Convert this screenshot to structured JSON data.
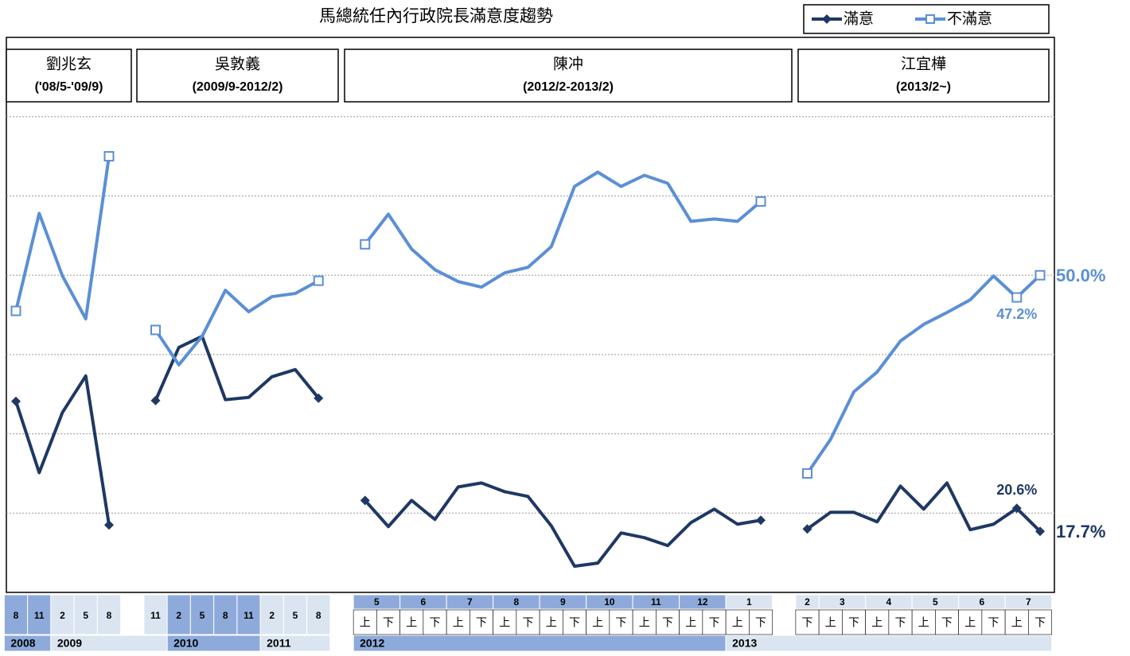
{
  "chart_data": {
    "type": "line",
    "title": "馬總統任內行政院長滿意度趨勢",
    "periods": [
      {
        "name": "劉兆玄",
        "term": "('08/5-'09/9)"
      },
      {
        "name": "吳敦義",
        "term": "(2009/9-2012/2)"
      },
      {
        "name": "陳冲",
        "term": "(2012/2-2013/2)"
      },
      {
        "name": "江宜樺",
        "term": "(2013/2~)"
      }
    ],
    "categories": [
      "8",
      "11",
      "2",
      "5",
      "8",
      null,
      "11",
      "2",
      "5",
      "8",
      "11",
      "2",
      "5",
      "8",
      null,
      "上",
      "下",
      "上",
      "下",
      "上",
      "下",
      "上",
      "下",
      "上",
      "下",
      "上",
      "下",
      "上",
      "下",
      "上",
      "下",
      "上",
      "下",
      null,
      "下",
      "上",
      "下",
      "上",
      "下",
      "上",
      "下",
      "上",
      "下",
      "上",
      "下"
    ],
    "month_groups": [
      {
        "label": "5",
        "start": 15,
        "span": 2
      },
      {
        "label": "6",
        "start": 17,
        "span": 2
      },
      {
        "label": "7",
        "start": 19,
        "span": 2
      },
      {
        "label": "8",
        "start": 21,
        "span": 2
      },
      {
        "label": "9",
        "start": 23,
        "span": 2
      },
      {
        "label": "10",
        "start": 25,
        "span": 2
      },
      {
        "label": "11",
        "start": 27,
        "span": 2
      },
      {
        "label": "12",
        "start": 29,
        "span": 2
      },
      {
        "label": "1",
        "start": 31,
        "span": 2
      },
      {
        "label": "2",
        "start": 34,
        "span": 1
      },
      {
        "label": "3",
        "start": 35,
        "span": 2
      },
      {
        "label": "4",
        "start": 37,
        "span": 2
      },
      {
        "label": "5",
        "start": 39,
        "span": 2
      },
      {
        "label": "6",
        "start": 41,
        "span": 2
      },
      {
        "label": "7",
        "start": 43,
        "span": 2
      }
    ],
    "years": [
      {
        "label": "2008",
        "start": 0,
        "span": 2
      },
      {
        "label": "2009",
        "start": 2,
        "span": 5
      },
      {
        "label": "2010",
        "start": 7,
        "span": 4
      },
      {
        "label": "2011",
        "start": 11,
        "span": 3
      },
      {
        "label": "2012",
        "start": 15,
        "span": 16
      },
      {
        "label": "2013",
        "start": 31,
        "span": 14
      }
    ],
    "series": [
      {
        "name": "滿意",
        "color": "#1f3864",
        "marker": "diamond",
        "values": [
          34.1,
          25.1,
          32.7,
          37.3,
          18.5,
          null,
          34.2,
          40.9,
          42.3,
          34.3,
          34.6,
          37.2,
          38.1,
          34.5,
          null,
          21.6,
          18.3,
          21.6,
          19.2,
          23.3,
          23.8,
          22.7,
          22.1,
          18.4,
          13.3,
          13.7,
          17.5,
          16.9,
          15.9,
          18.8,
          20.5,
          18.6,
          19.1,
          null,
          18.0,
          20.1,
          20.1,
          18.9,
          23.4,
          20.5,
          23.8,
          17.9,
          18.6,
          20.6,
          17.7
        ],
        "value_labels": [
          null,
          null,
          null,
          null,
          null,
          null,
          null,
          null,
          null,
          null,
          null,
          null,
          null,
          null,
          null,
          null,
          null,
          null,
          null,
          null,
          null,
          null,
          null,
          null,
          null,
          null,
          null,
          null,
          null,
          null,
          null,
          null,
          null,
          null,
          null,
          null,
          null,
          null,
          null,
          null,
          null,
          null,
          null,
          "20.6%",
          "17.7%"
        ]
      },
      {
        "name": "不滿意",
        "color": "#5b8fd6",
        "marker": "square",
        "values": [
          45.5,
          57.8,
          49.9,
          44.5,
          65.0,
          null,
          43.1,
          38.7,
          42.3,
          48.1,
          45.4,
          47.3,
          47.7,
          49.3,
          null,
          53.9,
          57.7,
          53.3,
          50.7,
          49.2,
          48.5,
          50.3,
          51.0,
          53.6,
          61.2,
          63.0,
          61.2,
          62.6,
          61.6,
          56.8,
          57.1,
          56.8,
          59.3,
          null,
          25.0,
          29.3,
          35.3,
          37.8,
          41.7,
          43.8,
          45.3,
          46.9,
          49.9,
          47.2,
          50.0
        ],
        "value_labels": [
          null,
          null,
          null,
          null,
          null,
          null,
          null,
          null,
          null,
          null,
          null,
          null,
          null,
          null,
          null,
          null,
          null,
          null,
          null,
          null,
          null,
          null,
          null,
          null,
          null,
          null,
          null,
          null,
          null,
          null,
          null,
          null,
          null,
          null,
          null,
          null,
          null,
          null,
          null,
          null,
          null,
          null,
          null,
          "47.2%",
          "50.0%"
        ]
      }
    ],
    "ylim": [
      10,
      80
    ],
    "yticks": [
      20,
      30,
      40,
      50,
      60,
      70
    ],
    "grid": true,
    "legend": "top-right"
  }
}
